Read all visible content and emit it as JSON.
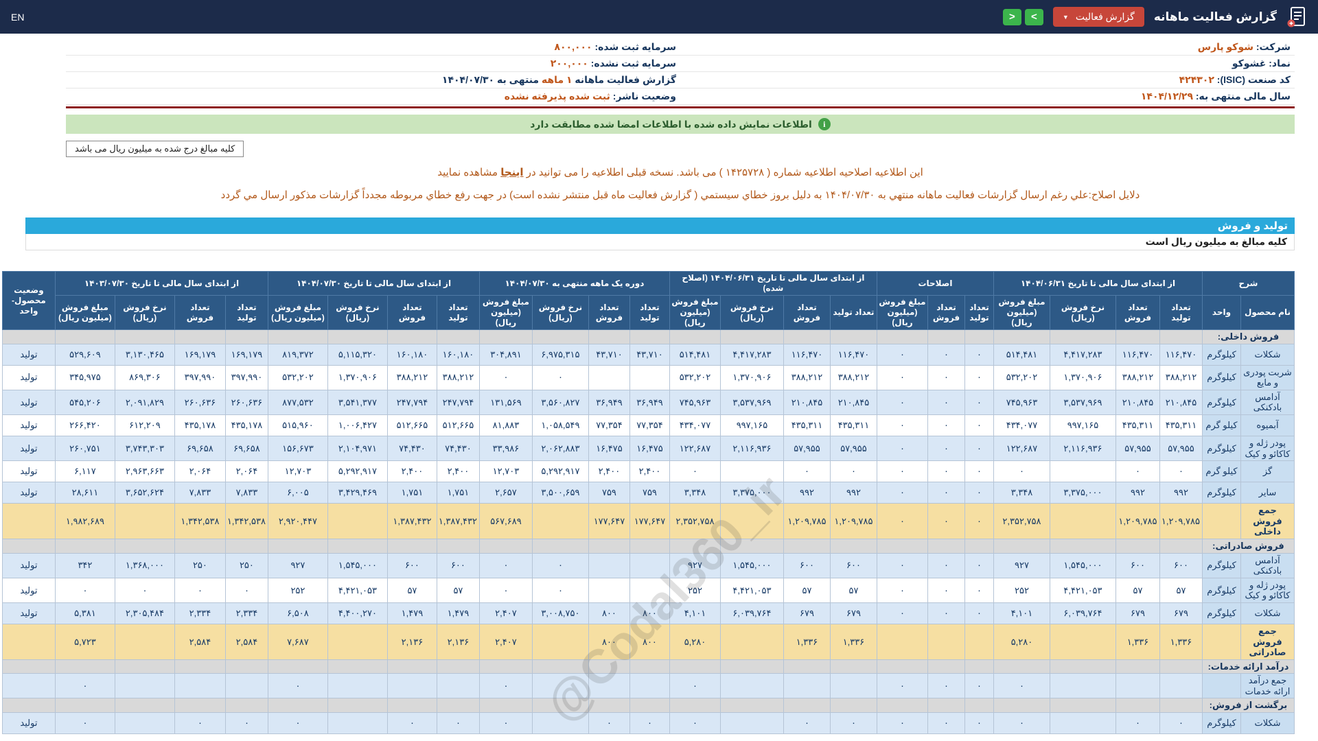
{
  "topbar": {
    "lang": "EN",
    "title": "گزارش فعالیت ماهانه",
    "dropdown_label": "گزارش فعالیت",
    "nav_next": ">",
    "nav_prev": "<"
  },
  "info": {
    "right": [
      {
        "label": "شرکت:",
        "value": "شوکو پارس",
        "orange": true
      },
      {
        "label": "نماد:",
        "value": "غشوکو",
        "orange": false
      },
      {
        "label": "کد صنعت (ISIC):",
        "value": "۴۲۴۳۰۲",
        "orange": true
      },
      {
        "label": "سال مالی منتهی به:",
        "value": "۱۴۰۴/۱۲/۲۹",
        "orange": true
      }
    ],
    "left": [
      {
        "label": "سرمایه ثبت شده:",
        "value": "۸۰۰,۰۰۰",
        "orange": true
      },
      {
        "label": "سرمایه ثبت نشده:",
        "value": "۲۰۰,۰۰۰",
        "orange": true
      },
      {
        "label": "گزارش فعالیت ماهانه",
        "value": "۱ ماهه",
        "suffix": "منتهی به ۱۴۰۴/۰۷/۳۰",
        "orange": true
      },
      {
        "label": "وضعیت ناشر:",
        "value": "ثبت شده پذیرفته نشده",
        "orange": true
      }
    ]
  },
  "banner": {
    "text": "اطلاعات نمایش داده شده با اطلاعات امضا شده مطابقت دارد"
  },
  "amounts_box": "کلیه مبالغ درج شده به میلیون ریال می باشد",
  "notices": {
    "line1_pre": "این اطلاعیه اصلاحیه اطلاعیه شماره ( ۱۴۲۵۷۲۸ ) می باشد. نسخه قبلی اطلاعیه را می توانید در ",
    "line1_link": "اینجا",
    "line1_post": " مشاهده نمایید",
    "line2": "دلایل اصلاح:علي رغم ارسال گزارشات فعالیت ماهانه منتهي به ۱۴۰۴/۰۷/۳۰ به دلیل بروز خطاي سیستمي ( گزارش فعالیت ماه قبل منتشر نشده است) در جهت رفع خطاي مربوطه مجدداً گزارشات مذکور ارسال مي گردد"
  },
  "section": {
    "title": "تولید و فروش",
    "subtitle": "کلیه مبالغ به میلیون ریال است"
  },
  "watermark": "@Codal360_ir",
  "table": {
    "headers": {
      "sharh": "شرح",
      "name": "نام محصول",
      "unit": "واحد",
      "groups": [
        "از ابتدای سال مالی تا تاریخ ۱۴۰۴/۰۶/۳۱",
        "اصلاحات",
        "از ابتدای سال مالی تا تاریخ ۱۴۰۴/۰۶/۳۱ (اصلاح شده)",
        "دوره یک ماهه منتهی به ۱۴۰۴/۰۷/۳۰",
        "از ابتدای سال مالی تا تاریخ ۱۴۰۴/۰۷/۳۰",
        "از ابتدای سال مالی تا تاریخ ۱۴۰۳/۰۷/۳۰"
      ],
      "sub4": [
        "تعداد تولید",
        "تعداد فروش",
        "نرخ فروش (ریال)",
        "مبلغ فروش (میلیون ریال)"
      ],
      "sub3": [
        "تعداد تولید",
        "تعداد فروش",
        "مبلغ فروش (میلیون ریال)"
      ],
      "status": "وضعیت محصول-واحد"
    },
    "rows": [
      {
        "type": "section",
        "label": "فروش داخلی:"
      },
      {
        "type": "item",
        "shade": "blue",
        "name": "شکلات",
        "unit": "کیلوگرم",
        "status": "تولید",
        "cells": [
          "۱۱۶,۴۷۰",
          "۱۱۶,۴۷۰",
          "۴,۴۱۷,۲۸۳",
          "۵۱۴,۴۸۱",
          "۰",
          "۰",
          "۰",
          "۱۱۶,۴۷۰",
          "۱۱۶,۴۷۰",
          "۴,۴۱۷,۲۸۳",
          "۵۱۴,۴۸۱",
          "۴۳,۷۱۰",
          "۴۳,۷۱۰",
          "۶,۹۷۵,۳۱۵",
          "۳۰۴,۸۹۱",
          "۱۶۰,۱۸۰",
          "۱۶۰,۱۸۰",
          "۵,۱۱۵,۳۲۰",
          "۸۱۹,۳۷۲",
          "۱۶۹,۱۷۹",
          "۱۶۹,۱۷۹",
          "۳,۱۳۰,۴۶۵",
          "۵۲۹,۶۰۹"
        ]
      },
      {
        "type": "item",
        "shade": "white",
        "name": "شربت پودری و مایع",
        "unit": "کیلوگرم",
        "status": "تولید",
        "cells": [
          "۳۸۸,۲۱۲",
          "۳۸۸,۲۱۲",
          "۱,۳۷۰,۹۰۶",
          "۵۳۲,۲۰۲",
          "۰",
          "۰",
          "۰",
          "۳۸۸,۲۱۲",
          "۳۸۸,۲۱۲",
          "۱,۳۷۰,۹۰۶",
          "۵۳۲,۲۰۲",
          "",
          "",
          "۰",
          "۰",
          "۳۸۸,۲۱۲",
          "۳۸۸,۲۱۲",
          "۱,۳۷۰,۹۰۶",
          "۵۳۲,۲۰۲",
          "۳۹۷,۹۹۰",
          "۳۹۷,۹۹۰",
          "۸۶۹,۳۰۶",
          "۳۴۵,۹۷۵"
        ]
      },
      {
        "type": "item",
        "shade": "blue",
        "name": "آدامس بادکنکی",
        "unit": "کیلوگرم",
        "status": "تولید",
        "cells": [
          "۲۱۰,۸۴۵",
          "۲۱۰,۸۴۵",
          "۳,۵۳۷,۹۶۹",
          "۷۴۵,۹۶۳",
          "۰",
          "۰",
          "۰",
          "۲۱۰,۸۴۵",
          "۲۱۰,۸۴۵",
          "۳,۵۳۷,۹۶۹",
          "۷۴۵,۹۶۳",
          "۳۶,۹۴۹",
          "۳۶,۹۴۹",
          "۳,۵۶۰,۸۲۷",
          "۱۳۱,۵۶۹",
          "۲۴۷,۷۹۴",
          "۲۴۷,۷۹۴",
          "۳,۵۴۱,۳۷۷",
          "۸۷۷,۵۳۲",
          "۲۶۰,۶۳۶",
          "۲۶۰,۶۳۶",
          "۲,۰۹۱,۸۲۹",
          "۵۴۵,۲۰۶"
        ]
      },
      {
        "type": "item",
        "shade": "white",
        "name": "آبمیوه",
        "unit": "کیلو گرم",
        "status": "تولید",
        "cells": [
          "۴۳۵,۳۱۱",
          "۴۳۵,۳۱۱",
          "۹۹۷,۱۶۵",
          "۴۳۴,۰۷۷",
          "۰",
          "۰",
          "۰",
          "۴۳۵,۳۱۱",
          "۴۳۵,۳۱۱",
          "۹۹۷,۱۶۵",
          "۴۳۴,۰۷۷",
          "۷۷,۳۵۴",
          "۷۷,۳۵۴",
          "۱,۰۵۸,۵۴۹",
          "۸۱,۸۸۳",
          "۵۱۲,۶۶۵",
          "۵۱۲,۶۶۵",
          "۱,۰۰۶,۴۲۷",
          "۵۱۵,۹۶۰",
          "۴۳۵,۱۷۸",
          "۴۳۵,۱۷۸",
          "۶۱۲,۲۰۹",
          "۲۶۶,۴۲۰"
        ]
      },
      {
        "type": "item",
        "shade": "blue",
        "name": "پودر ژله و کاکائو و کیک",
        "unit": "کیلوگرم",
        "status": "تولید",
        "cells": [
          "۵۷,۹۵۵",
          "۵۷,۹۵۵",
          "۲,۱۱۶,۹۳۶",
          "۱۲۲,۶۸۷",
          "۰",
          "۰",
          "۰",
          "۵۷,۹۵۵",
          "۵۷,۹۵۵",
          "۲,۱۱۶,۹۳۶",
          "۱۲۲,۶۸۷",
          "۱۶,۴۷۵",
          "۱۶,۴۷۵",
          "۲,۰۶۲,۸۸۳",
          "۳۳,۹۸۶",
          "۷۴,۴۳۰",
          "۷۴,۴۳۰",
          "۲,۱۰۴,۹۷۱",
          "۱۵۶,۶۷۳",
          "۶۹,۶۵۸",
          "۶۹,۶۵۸",
          "۳,۷۴۳,۳۰۳",
          "۲۶۰,۷۵۱"
        ]
      },
      {
        "type": "item",
        "shade": "white",
        "name": "گز",
        "unit": "کیلو گرم",
        "status": "تولید",
        "cells": [
          "۰",
          "۰",
          "",
          "۰",
          "۰",
          "۰",
          "۰",
          "۰",
          "۰",
          "",
          "۰",
          "۲,۴۰۰",
          "۲,۴۰۰",
          "۵,۲۹۲,۹۱۷",
          "۱۲,۷۰۳",
          "۲,۴۰۰",
          "۲,۴۰۰",
          "۵,۲۹۲,۹۱۷",
          "۱۲,۷۰۳",
          "۲,۰۶۴",
          "۲,۰۶۴",
          "۲,۹۶۳,۶۶۳",
          "۶,۱۱۷"
        ]
      },
      {
        "type": "item",
        "shade": "blue",
        "name": "سایر",
        "unit": "کیلوگرم",
        "status": "تولید",
        "cells": [
          "۹۹۲",
          "۹۹۲",
          "۳,۳۷۵,۰۰۰",
          "۳,۳۴۸",
          "۰",
          "۰",
          "۰",
          "۹۹۲",
          "۹۹۲",
          "۳,۳۷۵,۰۰۰",
          "۳,۳۴۸",
          "۷۵۹",
          "۷۵۹",
          "۳,۵۰۰,۶۵۹",
          "۲,۶۵۷",
          "۱,۷۵۱",
          "۱,۷۵۱",
          "۳,۴۲۹,۴۶۹",
          "۶,۰۰۵",
          "۷,۸۳۳",
          "۷,۸۳۳",
          "۳,۶۵۲,۶۲۴",
          "۲۸,۶۱۱"
        ]
      },
      {
        "type": "total",
        "name": "جمع فروش داخلی",
        "unit": "",
        "status": "",
        "cells": [
          "۱,۲۰۹,۷۸۵",
          "۱,۲۰۹,۷۸۵",
          "",
          "۲,۳۵۲,۷۵۸",
          "۰",
          "۰",
          "۰",
          "۱,۲۰۹,۷۸۵",
          "۱,۲۰۹,۷۸۵",
          "",
          "۲,۳۵۲,۷۵۸",
          "۱۷۷,۶۴۷",
          "۱۷۷,۶۴۷",
          "",
          "۵۶۷,۶۸۹",
          "۱,۳۸۷,۴۳۲",
          "۱,۳۸۷,۴۳۲",
          "",
          "۲,۹۲۰,۴۴۷",
          "۱,۳۴۲,۵۳۸",
          "۱,۳۴۲,۵۳۸",
          "",
          "۱,۹۸۲,۶۸۹"
        ]
      },
      {
        "type": "section",
        "label": "فروش صادراتی:"
      },
      {
        "type": "item",
        "shade": "blue",
        "name": "آدامس بادکنکی",
        "unit": "کیلوگرم",
        "status": "تولید",
        "cells": [
          "۶۰۰",
          "۶۰۰",
          "۱,۵۴۵,۰۰۰",
          "۹۲۷",
          "۰",
          "۰",
          "۰",
          "۶۰۰",
          "۶۰۰",
          "۱,۵۴۵,۰۰۰",
          "۹۲۷",
          "",
          "",
          "۰",
          "۰",
          "۶۰۰",
          "۶۰۰",
          "۱,۵۴۵,۰۰۰",
          "۹۲۷",
          "۲۵۰",
          "۲۵۰",
          "۱,۳۶۸,۰۰۰",
          "۳۴۲"
        ]
      },
      {
        "type": "item",
        "shade": "white",
        "name": "پودر ژله و کاکائو و کیک",
        "unit": "کیلوگرم",
        "status": "تولید",
        "cells": [
          "۵۷",
          "۵۷",
          "۴,۴۲۱,۰۵۳",
          "۲۵۲",
          "۰",
          "۰",
          "۰",
          "۵۷",
          "۵۷",
          "۴,۴۲۱,۰۵۳",
          "۲۵۲",
          "",
          "",
          "۰",
          "۰",
          "۵۷",
          "۵۷",
          "۴,۴۲۱,۰۵۳",
          "۲۵۲",
          "۰",
          "۰",
          "۰",
          "۰"
        ]
      },
      {
        "type": "item",
        "shade": "blue",
        "name": "شکلات",
        "unit": "کیلوگرم",
        "status": "تولید",
        "cells": [
          "۶۷۹",
          "۶۷۹",
          "۶,۰۳۹,۷۶۴",
          "۴,۱۰۱",
          "۰",
          "۰",
          "۰",
          "۶۷۹",
          "۶۷۹",
          "۶,۰۳۹,۷۶۴",
          "۴,۱۰۱",
          "۸۰۰",
          "۸۰۰",
          "۳,۰۰۸,۷۵۰",
          "۲,۴۰۷",
          "۱,۴۷۹",
          "۱,۴۷۹",
          "۴,۴۰۰,۲۷۰",
          "۶,۵۰۸",
          "۲,۳۳۴",
          "۲,۳۳۴",
          "۲,۳۰۵,۴۸۴",
          "۵,۳۸۱"
        ]
      },
      {
        "type": "total",
        "name": "جمع فروش صادراتی",
        "unit": "",
        "status": "",
        "cells": [
          "۱,۳۳۶",
          "۱,۳۳۶",
          "",
          "۵,۲۸۰",
          "",
          "",
          "",
          "۱,۳۳۶",
          "۱,۳۳۶",
          "",
          "۵,۲۸۰",
          "۸۰۰",
          "۸۰۰",
          "",
          "۲,۴۰۷",
          "۲,۱۳۶",
          "۲,۱۳۶",
          "",
          "۷,۶۸۷",
          "۲,۵۸۴",
          "۲,۵۸۴",
          "",
          "۵,۷۲۳"
        ]
      },
      {
        "type": "section",
        "label": "درآمد ارائه خدمات:"
      },
      {
        "type": "item",
        "shade": "blue",
        "name": "جمع درآمد ارائه خدمات",
        "unit": "",
        "status": "",
        "cells": [
          "",
          "",
          "",
          "۰",
          "۰",
          "۰",
          "۰",
          "",
          "",
          "",
          "۰",
          "",
          "",
          "",
          "۰",
          "",
          "",
          "",
          "۰",
          "",
          "",
          "",
          "۰"
        ]
      },
      {
        "type": "section",
        "label": "برگشت از فروش:"
      },
      {
        "type": "item",
        "shade": "blue",
        "name": "شکلات",
        "unit": "کیلوگرم",
        "status": "تولید",
        "cells": [
          "۰",
          "۰",
          "",
          "۰",
          "۰",
          "۰",
          "۰",
          "۰",
          "۰",
          "",
          "۰",
          "۰",
          "۰",
          "",
          "۰",
          "۰",
          "۰",
          "",
          "۰",
          "۰",
          "۰",
          "",
          "۰"
        ]
      }
    ]
  }
}
